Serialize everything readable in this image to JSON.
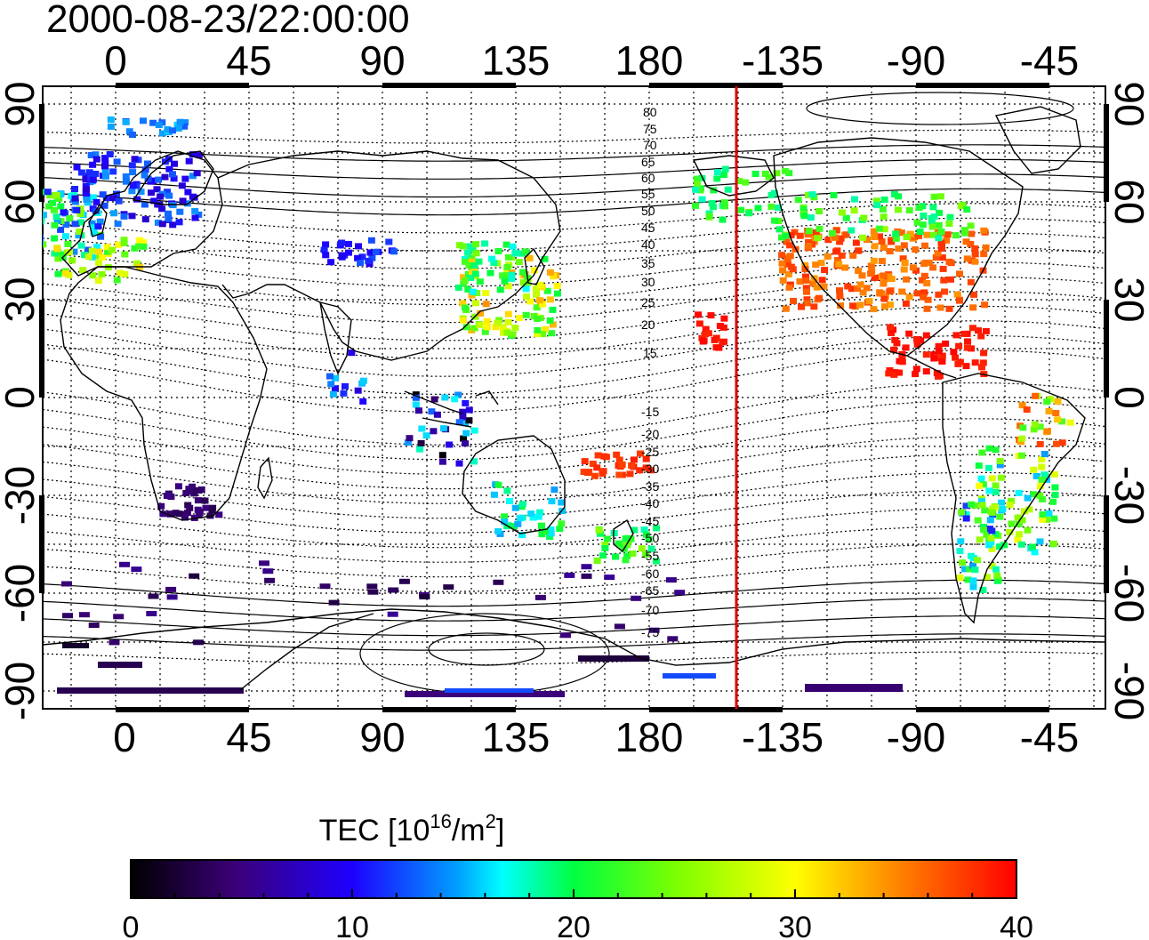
{
  "title": "2000-08-23/22:00:00",
  "top_lon_labels": [
    "0",
    "45",
    "90",
    "135",
    "180",
    "-135",
    "-90",
    "-45"
  ],
  "bottom_lon_labels": [
    "0",
    "45",
    "90",
    "135",
    "180",
    "-135",
    "-90",
    "-45"
  ],
  "lat_labels": [
    "90",
    "60",
    "30",
    "0",
    "-30",
    "-60",
    "-90"
  ],
  "mlat_labels_north": [
    "80",
    "75",
    "70",
    "65",
    "60",
    "55",
    "50",
    "45",
    "40",
    "35",
    "30",
    "25",
    "20",
    "15"
  ],
  "mlat_labels_south": [
    "-15",
    "-20",
    "-25",
    "-30",
    "-35",
    "-40",
    "-45",
    "-50",
    "-55",
    "-60",
    "-65",
    "-70",
    "-75"
  ],
  "colorbar": {
    "label_prefix": "TEC  [10",
    "label_exp": "16",
    "label_mid": "/m",
    "label_exp2": "2",
    "label_suffix": "]",
    "ticks": [
      "0",
      "10",
      "20",
      "30",
      "40"
    ],
    "range": [
      0,
      40
    ],
    "stops": [
      "#000000",
      "#3b007a",
      "#1e00ff",
      "#00ffff",
      "#00ff00",
      "#ffff00",
      "#ff0000"
    ]
  },
  "marker": {
    "longitude": -151,
    "color": "#ff0000"
  }
}
